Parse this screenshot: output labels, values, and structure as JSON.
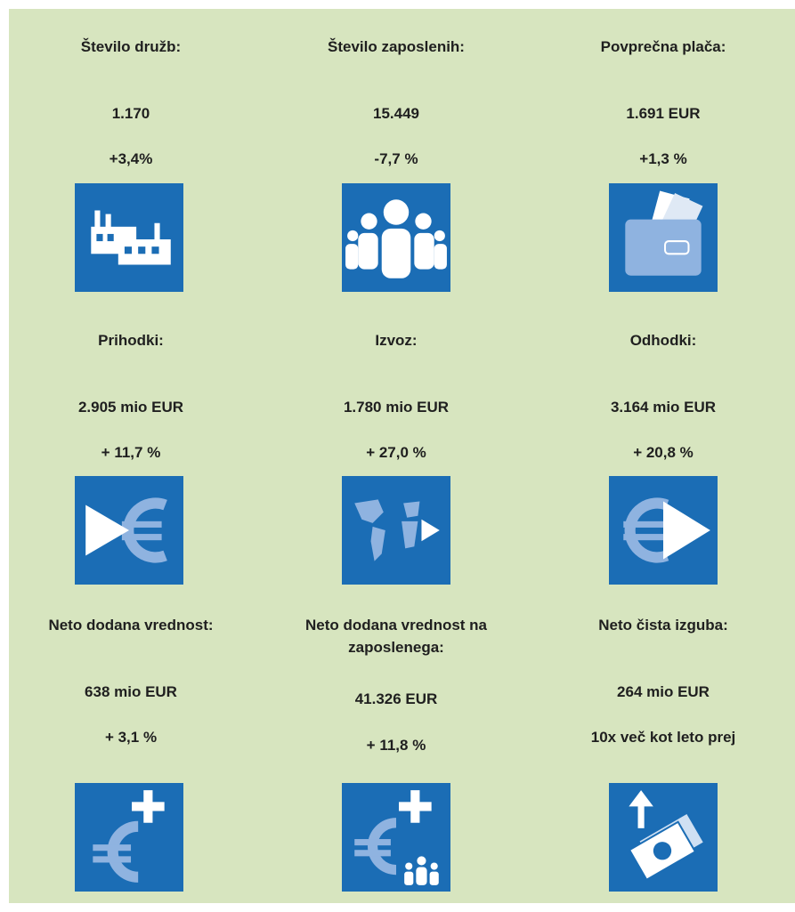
{
  "stats": [
    {
      "title": "Število družb:",
      "value": "1.170",
      "change": "+3,4%"
    },
    {
      "title": "Število zaposlenih:",
      "value": "15.449",
      "change": "-7,7 %"
    },
    {
      "title": "Povprečna plača:",
      "value": "1.691 EUR",
      "change": "+1,3 %"
    },
    {
      "title": "Prihodki:",
      "value": "2.905 mio EUR",
      "change": "+ 11,7 %"
    },
    {
      "title": "Izvoz:",
      "value": "1.780 mio EUR",
      "change": "+ 27,0 %"
    },
    {
      "title": "Odhodki:",
      "value": "3.164 mio EUR",
      "change": "+ 20,8 %"
    },
    {
      "title": "Neto dodana vrednost:",
      "value": "638 mio EUR",
      "change": "+ 3,1 %"
    },
    {
      "title": "Neto dodana vrednost na zaposlenega:",
      "value": "41.326 EUR",
      "change": "+ 11,8 %"
    },
    {
      "title": "Neto čista izguba:",
      "value": "264 mio EUR",
      "change": "10x več kot leto prej"
    }
  ]
}
